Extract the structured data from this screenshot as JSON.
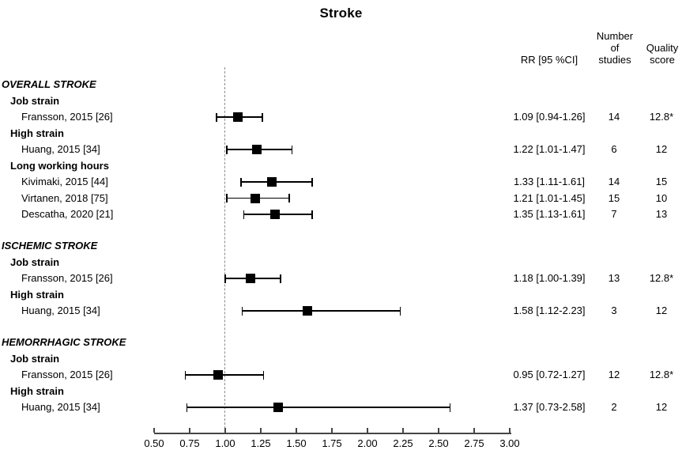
{
  "title": "Stroke",
  "columns": {
    "rr_header": "RR [95 %CI]",
    "n_studies_header": "Number\nof\nstudies",
    "quality_header": "Quality\nscore"
  },
  "chart_data": {
    "type": "forest",
    "title": "Stroke",
    "xlabel": "",
    "legend": "none",
    "axis": {
      "min": 0.5,
      "max": 3.0,
      "reference_line": 1.0,
      "ticks": [
        "0.50",
        "0.75",
        "1.00",
        "1.25",
        "1.50",
        "1.75",
        "2.00",
        "2.25",
        "2.50",
        "2.75",
        "3.00"
      ]
    },
    "rows": [
      {
        "type": "section",
        "label": "OVERALL STROKE"
      },
      {
        "type": "subgroup",
        "label": "Job strain"
      },
      {
        "type": "study",
        "label": "Fransson, 2015 [26]",
        "rr": 1.09,
        "ci_low": 0.94,
        "ci_high": 1.26,
        "rr_text": "1.09 [0.94-1.26]",
        "n_studies": "14",
        "quality": "12.8*"
      },
      {
        "type": "subgroup",
        "label": "High strain"
      },
      {
        "type": "study",
        "label": "Huang, 2015 [34]",
        "rr": 1.22,
        "ci_low": 1.01,
        "ci_high": 1.47,
        "rr_text": "1.22 [1.01-1.47]",
        "n_studies": "6",
        "quality": "12"
      },
      {
        "type": "subgroup",
        "label": "Long working hours"
      },
      {
        "type": "study",
        "label": "Kivimaki, 2015 [44]",
        "rr": 1.33,
        "ci_low": 1.11,
        "ci_high": 1.61,
        "rr_text": "1.33 [1.11-1.61]",
        "n_studies": "14",
        "quality": "15"
      },
      {
        "type": "study",
        "label": "Virtanen, 2018 [75]",
        "rr": 1.21,
        "ci_low": 1.01,
        "ci_high": 1.45,
        "rr_text": "1.21 [1.01-1.45]",
        "n_studies": "15",
        "quality": "10"
      },
      {
        "type": "study",
        "label": "Descatha, 2020 [21]",
        "rr": 1.35,
        "ci_low": 1.13,
        "ci_high": 1.61,
        "rr_text": "1.35 [1.13-1.61]",
        "n_studies": "7",
        "quality": "13"
      },
      {
        "type": "section",
        "label": "ISCHEMIC STROKE"
      },
      {
        "type": "subgroup",
        "label": "Job strain"
      },
      {
        "type": "study",
        "label": "Fransson, 2015 [26]",
        "rr": 1.18,
        "ci_low": 1.0,
        "ci_high": 1.39,
        "rr_text": "1.18 [1.00-1.39]",
        "n_studies": "13",
        "quality": "12.8*"
      },
      {
        "type": "subgroup",
        "label": "High strain"
      },
      {
        "type": "study",
        "label": "Huang, 2015 [34]",
        "rr": 1.58,
        "ci_low": 1.12,
        "ci_high": 2.23,
        "rr_text": "1.58 [1.12-2.23]",
        "n_studies": "3",
        "quality": "12"
      },
      {
        "type": "section",
        "label": "HEMORRHAGIC STROKE"
      },
      {
        "type": "subgroup",
        "label": "Job strain"
      },
      {
        "type": "study",
        "label": "Fransson, 2015 [26]",
        "rr": 0.95,
        "ci_low": 0.72,
        "ci_high": 1.27,
        "rr_text": "0.95 [0.72-1.27]",
        "n_studies": "12",
        "quality": "12.8*"
      },
      {
        "type": "subgroup",
        "label": "High strain"
      },
      {
        "type": "study",
        "label": "Huang, 2015 [34]",
        "rr": 1.37,
        "ci_low": 0.73,
        "ci_high": 2.58,
        "rr_text": "1.37 [0.73-2.58]",
        "n_studies": "2",
        "quality": "12"
      }
    ]
  },
  "colors": {
    "marker": "#000000",
    "ci_line": "#000000",
    "reference_line": "#8c8c8c",
    "axis": "#454545",
    "text": "#000000"
  }
}
